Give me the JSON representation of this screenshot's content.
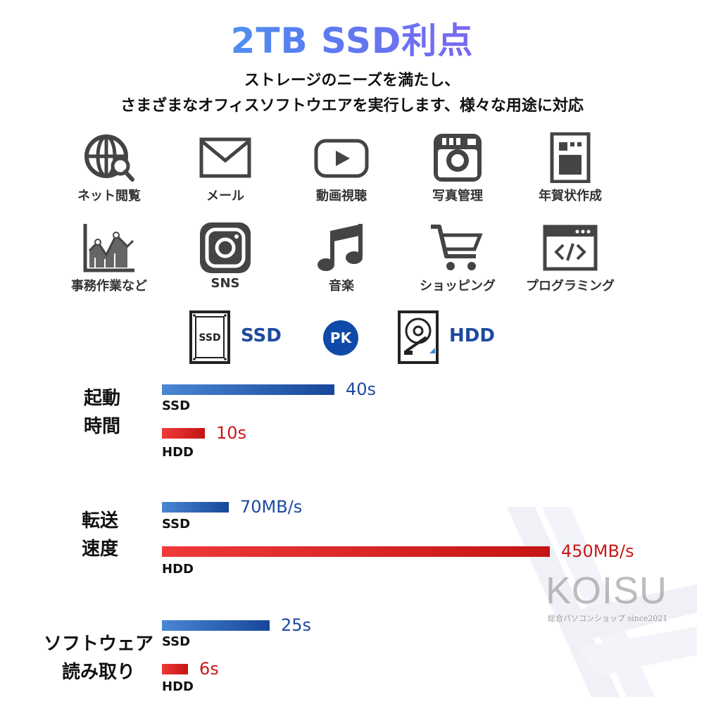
{
  "title": "2TB SSD利点",
  "subtitle_line1": "ストレージのニーズを満たし、",
  "subtitle_line2": "さまざまなオフィスソフトウエアを実行します、様々な用途に対応",
  "icons_row1": [
    {
      "icon": "globe-search-icon",
      "label": "ネット閲覧"
    },
    {
      "icon": "mail-icon",
      "label": "メール"
    },
    {
      "icon": "play-icon",
      "label": "動画視聴"
    },
    {
      "icon": "camera-icon",
      "label": "写真管理"
    },
    {
      "icon": "card-icon",
      "label": "年賀状作成"
    }
  ],
  "icons_row2": [
    {
      "icon": "chart-icon",
      "label": "事務作業など"
    },
    {
      "icon": "instagram-icon",
      "label": "SNS"
    },
    {
      "icon": "music-note-icon",
      "label": "音楽"
    },
    {
      "icon": "cart-icon",
      "label": "ショッピング"
    },
    {
      "icon": "code-window-icon",
      "label": "プログラミング"
    }
  ],
  "comparison": {
    "ssd_icon_text": "SSD",
    "ssd_label": "SSD",
    "pk_label": "PK",
    "hdd_label": "HDD"
  },
  "groups": [
    {
      "label_line1": "起動",
      "label_line2": "時間",
      "ssd": {
        "kind": "SSD",
        "value": "40s",
        "bar_fraction": 0.4
      },
      "hdd": {
        "kind": "HDD",
        "value": "10s",
        "bar_fraction": 0.1
      }
    },
    {
      "label_line1": "転送",
      "label_line2": "速度",
      "ssd": {
        "kind": "SSD",
        "value": "70MB/s",
        "bar_fraction": 0.156
      },
      "hdd": {
        "kind": "HDD",
        "value": "450MB/s",
        "bar_fraction": 0.9
      }
    },
    {
      "label_line1": "ソフトウェア",
      "label_line2": "読み取り",
      "ssd": {
        "kind": "SSD",
        "value": "25s",
        "bar_fraction": 0.25
      },
      "hdd": {
        "kind": "HDD",
        "value": "6s",
        "bar_fraction": 0.06
      }
    }
  ],
  "watermark": {
    "brand": "KOISU",
    "tagline": "総合パソコンショップ  since2021"
  }
}
